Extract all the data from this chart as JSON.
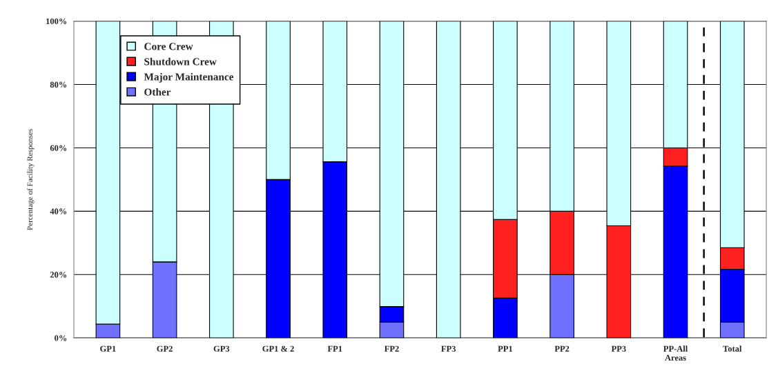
{
  "chart_data": {
    "type": "bar",
    "stacked": true,
    "ylabel": "Percentage of Facility Responses",
    "categories": [
      "GP1",
      "GP2",
      "GP3",
      "GP1 & 2",
      "FP1",
      "FP2",
      "FP3",
      "PP1",
      "PP2",
      "PP3",
      "PP-All\nAreas",
      "Total"
    ],
    "series": [
      {
        "name": "Other",
        "color": "#7070ff",
        "values": [
          4.4,
          24,
          0,
          0,
          0,
          5,
          0,
          0,
          20,
          0,
          0,
          5
        ]
      },
      {
        "name": "Major Maintenance",
        "color": "#0000ff",
        "values": [
          0,
          0,
          0,
          50,
          55.6,
          4.9,
          0,
          12.6,
          0,
          0,
          54.2,
          16.7
        ]
      },
      {
        "name": "Shutdown Crew",
        "color": "#ff2020",
        "values": [
          0,
          0,
          0,
          0,
          0,
          0,
          0,
          24.8,
          20,
          35.4,
          5.8,
          6.8
        ]
      },
      {
        "name": "Core Crew",
        "color": "#ccffff",
        "values": [
          95.6,
          76,
          100,
          50,
          44.4,
          90.1,
          100,
          62.6,
          60,
          64.6,
          40,
          71.5
        ]
      }
    ],
    "ylim": [
      0,
      100
    ],
    "yticks": [
      {
        "value": 0,
        "label": "0%"
      },
      {
        "value": 20,
        "label": "20%"
      },
      {
        "value": 40,
        "label": "40%"
      },
      {
        "value": 60,
        "label": "60%"
      },
      {
        "value": 80,
        "label": "80%"
      },
      {
        "value": 100,
        "label": "100%"
      }
    ],
    "grid": "y",
    "legend": "top left"
  }
}
